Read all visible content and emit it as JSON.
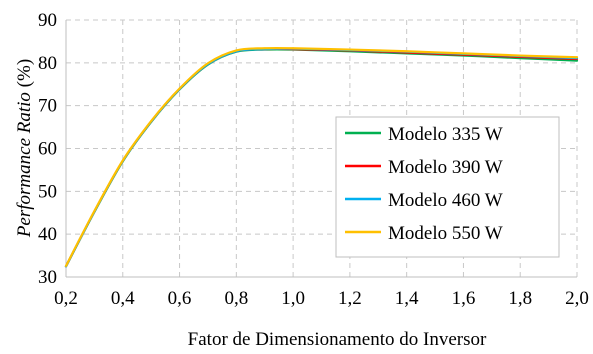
{
  "chart_data": {
    "type": "line",
    "title": "",
    "xlabel": "Fator de Dimensionamento  do Inversor",
    "ylabel": "Performance Ratio (%)",
    "ylabel_italic_part": "Performance Ratio",
    "ylabel_rest": " (%)",
    "xlim": [
      0.2,
      2.0
    ],
    "ylim": [
      30,
      90
    ],
    "x_ticks": [
      0.2,
      0.4,
      0.6,
      0.8,
      1.0,
      1.2,
      1.4,
      1.6,
      1.8,
      2.0
    ],
    "x_tick_labels": [
      "0,2",
      "0,4",
      "0,6",
      "0,8",
      "1,0",
      "1,2",
      "1,4",
      "1,6",
      "1,8",
      "2,0"
    ],
    "y_ticks": [
      30,
      40,
      50,
      60,
      70,
      80,
      90
    ],
    "y_tick_labels": [
      "30",
      "40",
      "50",
      "60",
      "70",
      "80",
      "90"
    ],
    "grid": true,
    "legend_position": "bottom-right",
    "series": [
      {
        "name": "Modelo 335 W",
        "color": "#00b050",
        "x": [
          0.2,
          0.3,
          0.4,
          0.5,
          0.6,
          0.7,
          0.8,
          0.9,
          1.0,
          1.2,
          1.4,
          1.6,
          1.8,
          2.0
        ],
        "y": [
          32.5,
          45.2,
          57.0,
          66.2,
          73.8,
          79.6,
          82.6,
          83.1,
          83.1,
          82.7,
          82.2,
          81.7,
          81.1,
          80.5
        ]
      },
      {
        "name": "Modelo 390 W",
        "color": "#ff0000",
        "x": [
          0.2,
          0.3,
          0.4,
          0.5,
          0.6,
          0.7,
          0.8,
          0.9,
          1.0,
          1.2,
          1.4,
          1.6,
          1.8,
          2.0
        ],
        "y": [
          32.5,
          45.3,
          57.1,
          66.3,
          73.9,
          79.7,
          82.7,
          83.2,
          83.2,
          82.9,
          82.4,
          81.9,
          81.4,
          80.9
        ]
      },
      {
        "name": "Modelo 460 W",
        "color": "#00b0f0",
        "x": [
          0.2,
          0.3,
          0.4,
          0.5,
          0.6,
          0.7,
          0.8,
          0.9,
          1.0,
          1.2,
          1.4,
          1.6,
          1.8,
          2.0
        ],
        "y": [
          32.5,
          45.3,
          57.1,
          66.3,
          73.9,
          79.7,
          82.7,
          83.2,
          83.3,
          83.0,
          82.6,
          82.1,
          81.6,
          81.1
        ]
      },
      {
        "name": "Modelo 550 W",
        "color": "#ffc000",
        "x": [
          0.2,
          0.3,
          0.4,
          0.5,
          0.6,
          0.7,
          0.8,
          0.9,
          1.0,
          1.2,
          1.4,
          1.6,
          1.8,
          2.0
        ],
        "y": [
          32.6,
          45.4,
          57.2,
          66.4,
          74.0,
          79.9,
          82.9,
          83.4,
          83.4,
          83.1,
          82.7,
          82.2,
          81.7,
          81.3
        ]
      }
    ]
  }
}
